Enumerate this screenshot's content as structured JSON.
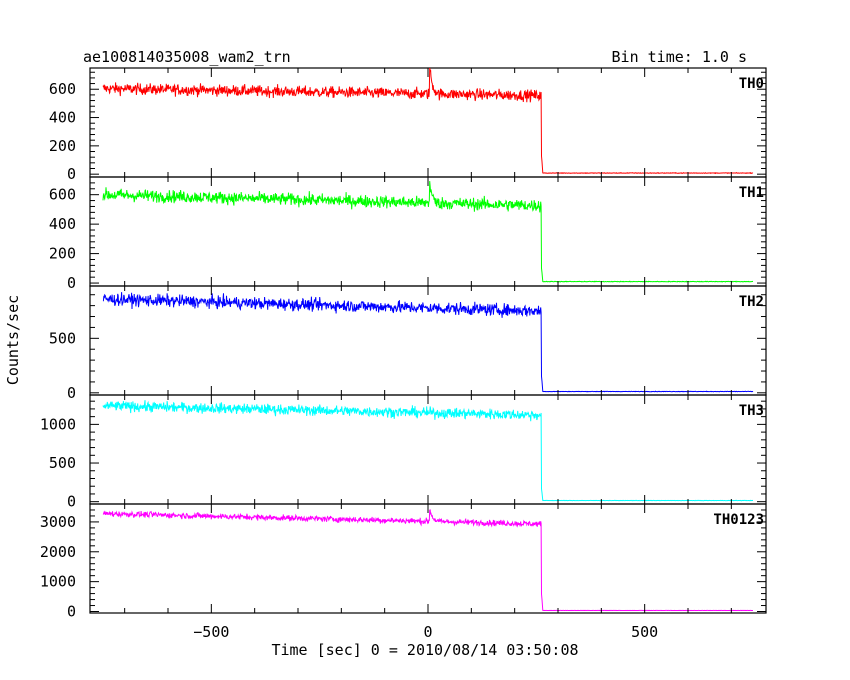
{
  "header": {
    "title": "ae100814035008_wam2_trn",
    "bin_time": "Bin time: 1.0 s"
  },
  "chart_data": {
    "type": "line",
    "xlabel": "Time [sec] 0 = 2010/08/14 03:50:08",
    "ylabel": "Counts/sec",
    "xlim": [
      -780,
      780
    ],
    "x_ticks": [
      -500,
      0,
      500
    ],
    "x_tick_labels": [
      "−500",
      "0",
      "500"
    ],
    "data_start": -750,
    "data_end": 750,
    "drop_time": 262,
    "panels": [
      {
        "name": "TH0",
        "color": "#ff0000",
        "ylim": [
          -20,
          750
        ],
        "y_ticks": [
          0,
          200,
          400,
          600
        ],
        "y_tick_labels": [
          "0",
          "200",
          "400",
          "600"
        ],
        "level_start": 605,
        "level_end": 555,
        "noise": 28,
        "spike": {
          "t": 4,
          "peak": 760,
          "width": 6
        },
        "post_level": 8,
        "drop_tail": 120
      },
      {
        "name": "TH1",
        "color": "#00ff00",
        "ylim": [
          -20,
          720
        ],
        "y_ticks": [
          0,
          200,
          400,
          600
        ],
        "y_tick_labels": [
          "0",
          "200",
          "400",
          "600"
        ],
        "level_start": 600,
        "level_end": 525,
        "noise": 30,
        "spike": {
          "t": 4,
          "peak": 700,
          "width": 5
        },
        "post_level": 10,
        "drop_tail": 90
      },
      {
        "name": "TH2",
        "color": "#0000ff",
        "ylim": [
          -20,
          980
        ],
        "y_ticks": [
          0,
          500
        ],
        "y_tick_labels": [
          "0",
          "500"
        ],
        "level_start": 860,
        "level_end": 750,
        "noise": 40,
        "spike": null,
        "post_level": 12,
        "drop_tail": 140
      },
      {
        "name": "TH3",
        "color": "#00ffff",
        "ylim": [
          -30,
          1380
        ],
        "y_ticks": [
          0,
          500,
          1000
        ],
        "y_tick_labels": [
          "0",
          "500",
          "1000"
        ],
        "level_start": 1240,
        "level_end": 1120,
        "noise": 48,
        "spike": null,
        "post_level": 15,
        "drop_tail": 150
      },
      {
        "name": "TH0123",
        "color": "#ff00ff",
        "ylim": [
          -50,
          3600
        ],
        "y_ticks": [
          0,
          1000,
          2000,
          3000
        ],
        "y_tick_labels": [
          "0",
          "1000",
          "2000",
          "3000"
        ],
        "level_start": 3280,
        "level_end": 2930,
        "noise": 70,
        "spike": {
          "t": 4,
          "peak": 3450,
          "width": 6
        },
        "post_level": 35,
        "drop_tail": 550
      }
    ]
  }
}
